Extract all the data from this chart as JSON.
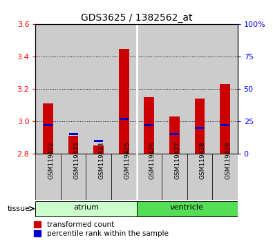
{
  "title": "GDS3625 / 1382562_at",
  "samples": [
    "GSM119422",
    "GSM119423",
    "GSM119424",
    "GSM119425",
    "GSM119426",
    "GSM119427",
    "GSM119428",
    "GSM119429"
  ],
  "red_values": [
    3.11,
    2.91,
    2.85,
    3.45,
    3.15,
    3.03,
    3.14,
    3.23
  ],
  "blue_percentile": [
    22,
    15,
    10,
    27,
    22,
    15,
    20,
    22
  ],
  "ylim_left": [
    2.8,
    3.6
  ],
  "ylim_right": [
    0,
    100
  ],
  "yticks_left": [
    2.8,
    3.0,
    3.2,
    3.4,
    3.6
  ],
  "yticks_right": [
    0,
    25,
    50,
    75,
    100
  ],
  "ytick_labels_right": [
    "0",
    "25",
    "50",
    "75",
    "100%"
  ],
  "groups": [
    {
      "label": "atrium",
      "start": 0,
      "end": 3,
      "color": "#ccffcc"
    },
    {
      "label": "ventricle",
      "start": 4,
      "end": 7,
      "color": "#55dd55"
    }
  ],
  "bar_width": 0.4,
  "red_color": "#cc0000",
  "blue_color": "#0000cc",
  "bg_color": "#cccccc",
  "tissue_label": "tissue",
  "legend_red": "transformed count",
  "legend_blue": "percentile rank within the sample",
  "base": 2.8
}
